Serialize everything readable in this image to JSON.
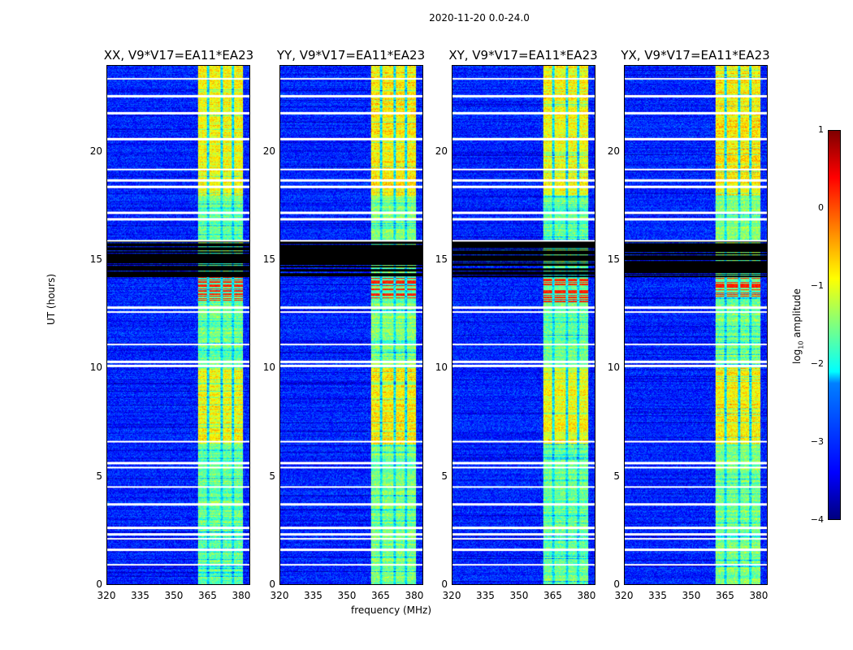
{
  "chart_data": {
    "type": "heatmap",
    "title": "2020-11-20 0.0-24.0",
    "xlabel": "frequency (MHz)",
    "ylabel": "UT (hours)",
    "xlim": [
      320,
      384
    ],
    "ylim": [
      0,
      24
    ],
    "xticks": [
      "320",
      "335",
      "350",
      "365",
      "380"
    ],
    "yticks": [
      "0",
      "5",
      "10",
      "15",
      "20"
    ],
    "panels": [
      {
        "title": "XX, V9*V17=EA11*EA23"
      },
      {
        "title": "YY, V9*V17=EA11*EA23"
      },
      {
        "title": "XY, V9*V17=EA11*EA23"
      },
      {
        "title": "YX, V9*V17=EA11*EA23"
      }
    ],
    "background_log_amplitude": -3.2,
    "rfi_channel_range_mhz": [
      361,
      381
    ],
    "rfi_subbands_mhz": [
      [
        361,
        365
      ],
      [
        366,
        371
      ],
      [
        372,
        376
      ],
      [
        377,
        381
      ]
    ],
    "rfi_log_amplitude": -1.6,
    "strong_rfi_hours": [
      [
        13.0,
        14.2
      ]
    ],
    "strong_rfi_log_amplitude": 0.2,
    "dark_block_hours": [
      [
        14.2,
        15.9
      ]
    ],
    "flagged_rows_hours": [
      0.9,
      1.6,
      2.1,
      2.3,
      2.6,
      3.7,
      4.5,
      5.4,
      5.6,
      6.6,
      10.1,
      10.3,
      11.1,
      12.6,
      12.8,
      15.9,
      16.9,
      17.2,
      18.4,
      18.7,
      19.2,
      20.6,
      21.8,
      22.6,
      23.4
    ],
    "colorbar": {
      "label": "log10 amplitude",
      "label_main": "log",
      "label_sub": "10",
      "label_rest": " amplitude",
      "range": [
        -4,
        1
      ],
      "ticks": [
        "1",
        "0",
        "−1",
        "−2",
        "−3",
        "−4"
      ],
      "colormap": "jet"
    }
  }
}
